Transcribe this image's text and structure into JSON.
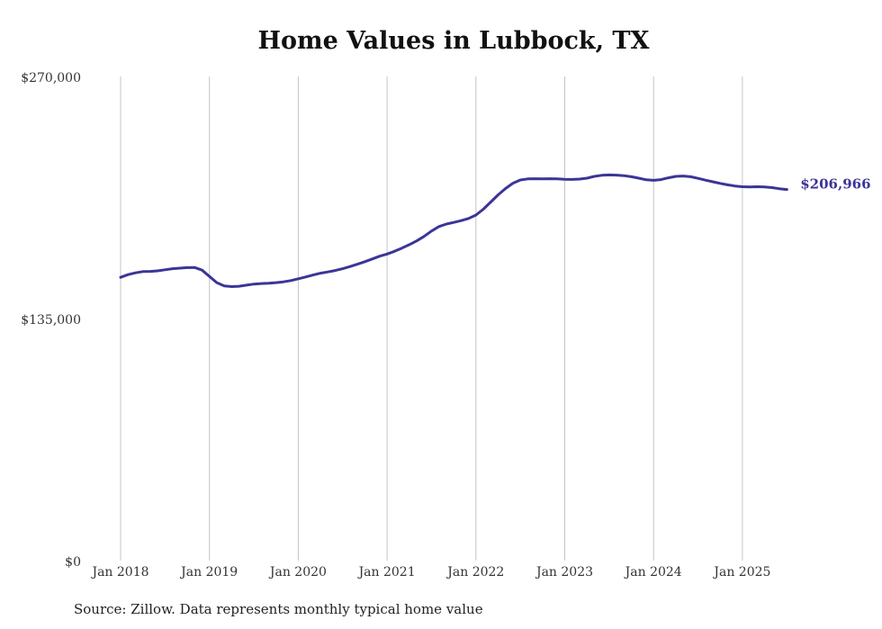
{
  "chart_data": {
    "type": "line",
    "title": "Home Values in Lubbock, TX",
    "xlabel": "",
    "ylabel": "",
    "xlim": [
      "2018-01",
      "2025-07"
    ],
    "ylim": [
      0,
      270000
    ],
    "grid": "vertical",
    "legend": "none",
    "x_ticks": [
      "Jan 2018",
      "Jan 2019",
      "Jan 2020",
      "Jan 2021",
      "Jan 2022",
      "Jan 2023",
      "Jan 2024",
      "Jan 2025"
    ],
    "y_ticks": [
      {
        "value": 0,
        "label": "$0"
      },
      {
        "value": 135000,
        "label": "$135,000"
      },
      {
        "value": 270000,
        "label": "$270,000"
      }
    ],
    "series": [
      {
        "color": "#3b3597",
        "end_label": "$206,966",
        "points": [
          [
            "2018-01",
            158000
          ],
          [
            "2018-02",
            159500
          ],
          [
            "2018-03",
            160500
          ],
          [
            "2018-04",
            161200
          ],
          [
            "2018-05",
            161300
          ],
          [
            "2018-06",
            161600
          ],
          [
            "2018-07",
            162200
          ],
          [
            "2018-08",
            162800
          ],
          [
            "2018-09",
            163100
          ],
          [
            "2018-10",
            163400
          ],
          [
            "2018-11",
            163500
          ],
          [
            "2018-12",
            162000
          ],
          [
            "2019-01",
            158500
          ],
          [
            "2019-02",
            155000
          ],
          [
            "2019-03",
            153200
          ],
          [
            "2019-04",
            152800
          ],
          [
            "2019-05",
            153000
          ],
          [
            "2019-06",
            153600
          ],
          [
            "2019-07",
            154200
          ],
          [
            "2019-08",
            154500
          ],
          [
            "2019-09",
            154700
          ],
          [
            "2019-10",
            155000
          ],
          [
            "2019-11",
            155500
          ],
          [
            "2019-12",
            156200
          ],
          [
            "2020-01",
            157200
          ],
          [
            "2020-02",
            158200
          ],
          [
            "2020-03",
            159300
          ],
          [
            "2020-04",
            160300
          ],
          [
            "2020-05",
            161000
          ],
          [
            "2020-06",
            161800
          ],
          [
            "2020-07",
            162800
          ],
          [
            "2020-08",
            164000
          ],
          [
            "2020-09",
            165300
          ],
          [
            "2020-10",
            166700
          ],
          [
            "2020-11",
            168200
          ],
          [
            "2020-12",
            169800
          ],
          [
            "2021-01",
            171000
          ],
          [
            "2021-02",
            172500
          ],
          [
            "2021-03",
            174300
          ],
          [
            "2021-04",
            176200
          ],
          [
            "2021-05",
            178300
          ],
          [
            "2021-06",
            180800
          ],
          [
            "2021-07",
            183800
          ],
          [
            "2021-08",
            186300
          ],
          [
            "2021-09",
            187700
          ],
          [
            "2021-10",
            188600
          ],
          [
            "2021-11",
            189600
          ],
          [
            "2021-12",
            190800
          ],
          [
            "2022-01",
            192700
          ],
          [
            "2022-02",
            196000
          ],
          [
            "2022-03",
            200000
          ],
          [
            "2022-04",
            204000
          ],
          [
            "2022-05",
            207500
          ],
          [
            "2022-06",
            210500
          ],
          [
            "2022-07",
            212300
          ],
          [
            "2022-08",
            212900
          ],
          [
            "2022-09",
            213000
          ],
          [
            "2022-10",
            212900
          ],
          [
            "2022-11",
            213000
          ],
          [
            "2022-12",
            212900
          ],
          [
            "2023-01",
            212700
          ],
          [
            "2023-02",
            212600
          ],
          [
            "2023-03",
            212800
          ],
          [
            "2023-04",
            213300
          ],
          [
            "2023-05",
            214300
          ],
          [
            "2023-06",
            214900
          ],
          [
            "2023-07",
            215100
          ],
          [
            "2023-08",
            215000
          ],
          [
            "2023-09",
            214700
          ],
          [
            "2023-10",
            214100
          ],
          [
            "2023-11",
            213300
          ],
          [
            "2023-12",
            212400
          ],
          [
            "2024-01",
            212100
          ],
          [
            "2024-02",
            212500
          ],
          [
            "2024-03",
            213500
          ],
          [
            "2024-04",
            214300
          ],
          [
            "2024-05",
            214500
          ],
          [
            "2024-06",
            214100
          ],
          [
            "2024-07",
            213200
          ],
          [
            "2024-08",
            212200
          ],
          [
            "2024-09",
            211300
          ],
          [
            "2024-10",
            210400
          ],
          [
            "2024-11",
            209600
          ],
          [
            "2024-12",
            208900
          ],
          [
            "2025-01",
            208500
          ],
          [
            "2025-02",
            208400
          ],
          [
            "2025-03",
            208500
          ],
          [
            "2025-04",
            208400
          ],
          [
            "2025-05",
            208000
          ],
          [
            "2025-06",
            207400
          ],
          [
            "2025-07",
            206966
          ]
        ]
      }
    ]
  },
  "source_note": "Source: Zillow. Data represents monthly typical home value"
}
